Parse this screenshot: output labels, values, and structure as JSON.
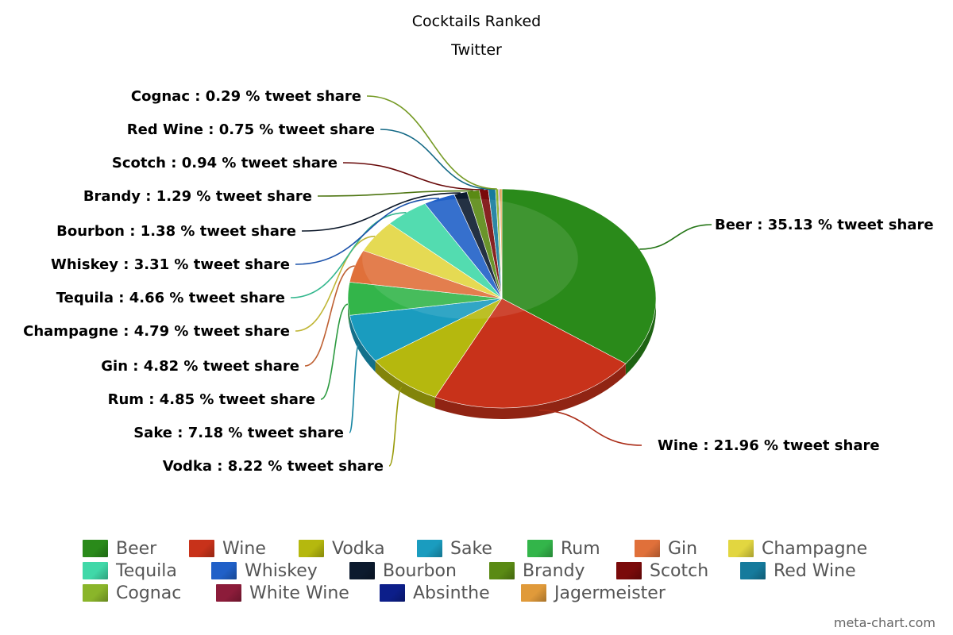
{
  "chart_data": {
    "type": "pie",
    "title": "Cocktails Ranked",
    "subtitle": "Twitter",
    "label_suffix": " % tweet share",
    "slices": [
      {
        "name": "Beer",
        "value": 35.13,
        "color": "#2a8a1a"
      },
      {
        "name": "Wine",
        "value": 21.96,
        "color": "#c8321a"
      },
      {
        "name": "Vodka",
        "value": 8.22,
        "color": "#b5b80e"
      },
      {
        "name": "Sake",
        "value": 7.18,
        "color": "#1a9cbf"
      },
      {
        "name": "Rum",
        "value": 4.85,
        "color": "#33b54a"
      },
      {
        "name": "Gin",
        "value": 4.82,
        "color": "#e0703a"
      },
      {
        "name": "Champagne",
        "value": 4.79,
        "color": "#e2d640"
      },
      {
        "name": "Tequila",
        "value": 4.66,
        "color": "#40d8a8"
      },
      {
        "name": "Whiskey",
        "value": 3.31,
        "color": "#2060c8"
      },
      {
        "name": "Bourbon",
        "value": 1.38,
        "color": "#0c1a2e"
      },
      {
        "name": "Brandy",
        "value": 1.29,
        "color": "#5a8a14"
      },
      {
        "name": "Scotch",
        "value": 0.94,
        "color": "#7a0a0a"
      },
      {
        "name": "Red Wine",
        "value": 0.75,
        "color": "#157a9c"
      },
      {
        "name": "Cognac",
        "value": 0.29,
        "color": "#8ab52a"
      },
      {
        "name": "White Wine",
        "value": 0.1,
        "color": "#8c1c3a"
      },
      {
        "name": "Absinthe",
        "value": 0.07,
        "color": "#0c1e8a"
      },
      {
        "name": "Jagermeister",
        "value": 0.2,
        "color": "#e09a3a"
      }
    ],
    "legend": [
      "Beer",
      "Wine",
      "Vodka",
      "Sake",
      "Rum",
      "Gin",
      "Champagne",
      "Tequila",
      "Whiskey",
      "Bourbon",
      "Brandy",
      "Scotch",
      "Red Wine",
      "Cognac",
      "White Wine",
      "Absinthe",
      "Jagermeister"
    ],
    "legend_placement": "bottom"
  },
  "credit": "meta-chart.com"
}
